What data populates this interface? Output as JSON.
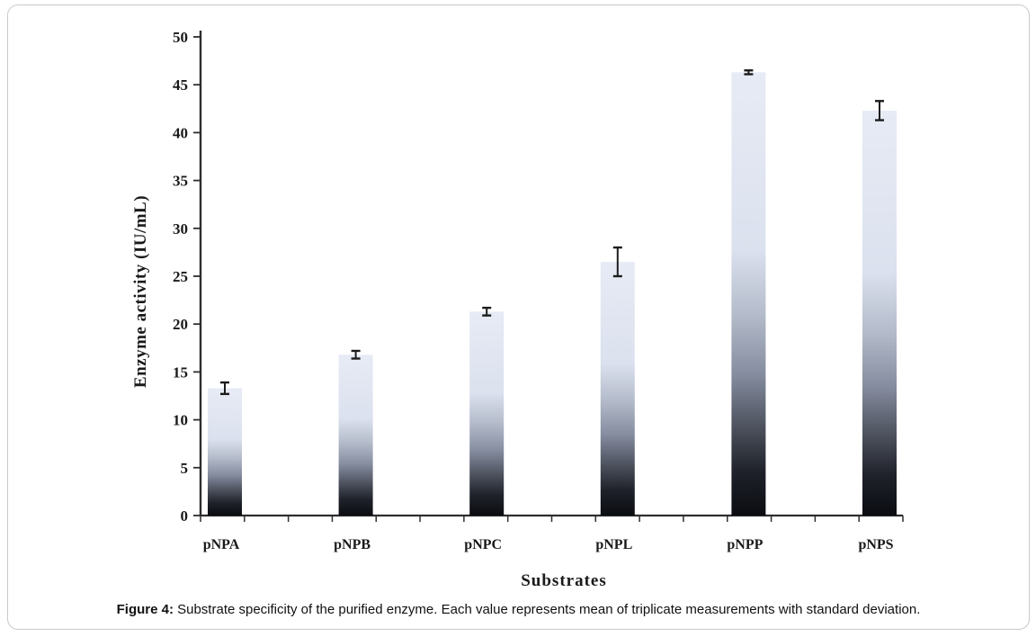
{
  "figure": {
    "caption_label": "Figure 4:",
    "caption_text": " Substrate specificity of the purified enzyme. Each value represents mean of triplicate measurements with standard deviation."
  },
  "chart_data": {
    "type": "bar",
    "title": "",
    "xlabel": "Substrates",
    "ylabel": "Enzyme activity (IU/mL)",
    "categories": [
      "pNPA",
      "pNPB",
      "pNPC",
      "pNPL",
      "pNPP",
      "pNPS"
    ],
    "values": [
      13.3,
      16.8,
      21.3,
      26.5,
      46.3,
      42.3
    ],
    "errors": [
      0.6,
      0.4,
      0.4,
      1.5,
      0.2,
      1.0
    ],
    "ylim": [
      0,
      50
    ],
    "ytick_step": 5,
    "yticks": [
      0,
      5,
      10,
      15,
      20,
      25,
      30,
      35,
      40,
      45,
      50
    ],
    "grid": false,
    "legend": "none",
    "colors": {
      "bar_gradient_top": "#e7ebf5",
      "bar_gradient_light": "#dbe1ee",
      "bar_gradient_mid": "#b3bac9",
      "bar_gradient_slate": "#868da0",
      "bar_gradient_dark": "#4d525e",
      "bar_gradient_deep": "#1f222a",
      "bar_gradient_bottom": "#0a0c11",
      "axis": "#2e2e2e",
      "error_bar": "#1c1c1c",
      "frame_border": "#c9c9c9",
      "text": "#1a1a1a"
    }
  }
}
